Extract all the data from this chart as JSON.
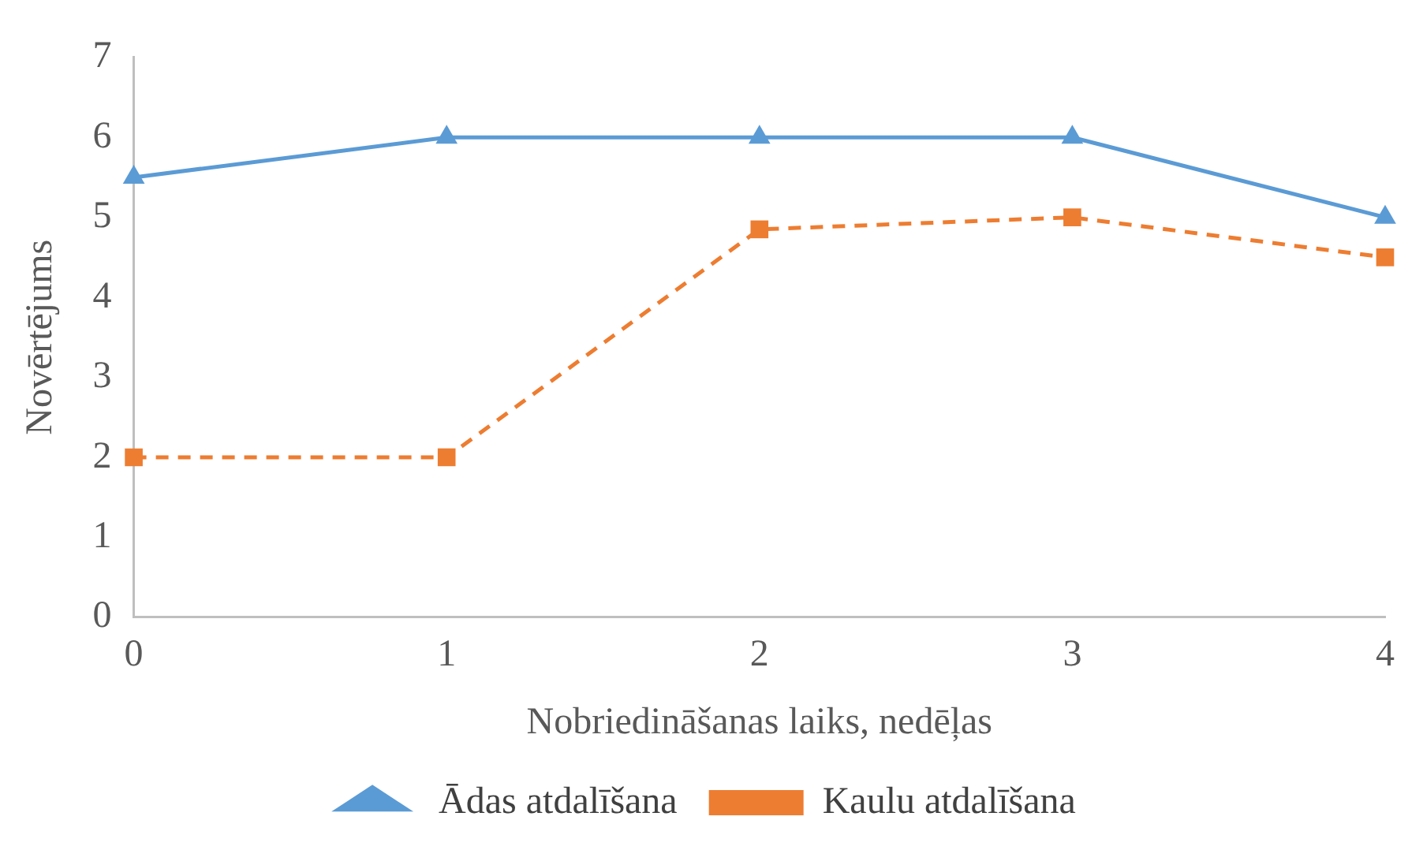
{
  "chart_data": {
    "type": "line",
    "xlabel": "Nobriedināšanas laiks, nedēļas",
    "ylabel": "Novērtējums",
    "categories": [
      "0",
      "1",
      "2",
      "3",
      "4"
    ],
    "series": [
      {
        "name": "Ādas atdalīšana",
        "color": "#5b9bd5",
        "values": [
          5.5,
          6,
          6,
          6,
          5
        ],
        "marker": "triangle",
        "line_style": "solid"
      },
      {
        "name": "Kaulu atdalīšana",
        "color": "#ed7d31",
        "values": [
          2,
          2,
          4.85,
          5,
          4.5
        ],
        "marker": "square",
        "line_style": "dashed"
      }
    ],
    "ylim": [
      0,
      7
    ],
    "yticks": [
      0,
      1,
      2,
      3,
      4,
      5,
      6,
      7
    ],
    "grid": false,
    "legend": "bottom"
  }
}
